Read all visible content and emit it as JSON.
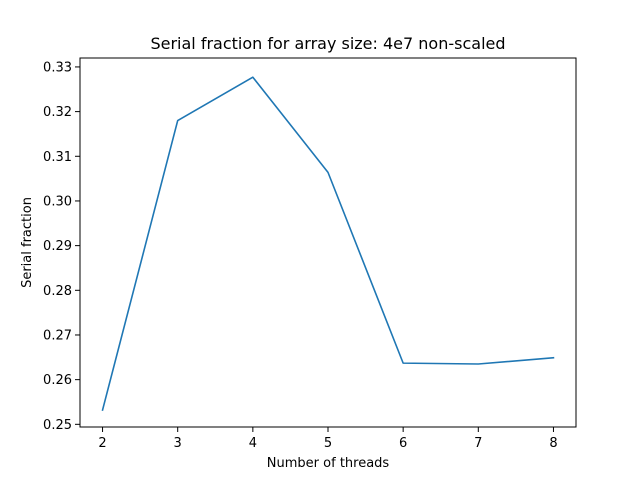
{
  "chart_data": {
    "type": "line",
    "title": "Serial fraction for array size: 4e7 non-scaled",
    "xlabel": "Number of threads",
    "ylabel": "Serial fraction",
    "x": [
      2,
      3,
      4,
      5,
      6,
      7,
      8
    ],
    "series": [
      {
        "values": [
          0.2532,
          0.318,
          0.3277,
          0.3064,
          0.2637,
          0.2635,
          0.2649
        ],
        "color": "#1f77b4"
      }
    ],
    "xlim": [
      1.7,
      8.3
    ],
    "ylim": [
      0.2494,
      0.332
    ],
    "xticks": [
      2,
      3,
      4,
      5,
      6,
      7,
      8
    ],
    "xtick_labels": [
      "2",
      "3",
      "4",
      "5",
      "6",
      "7",
      "8"
    ],
    "yticks": [
      0.25,
      0.26,
      0.27,
      0.28,
      0.29,
      0.3,
      0.31,
      0.32,
      0.33
    ],
    "ytick_labels": [
      "0.25",
      "0.26",
      "0.27",
      "0.28",
      "0.29",
      "0.30",
      "0.31",
      "0.32",
      "0.33"
    ],
    "grid": false,
    "legend": false
  }
}
